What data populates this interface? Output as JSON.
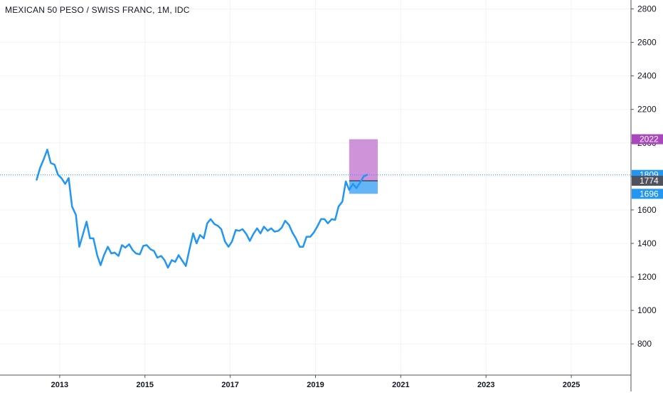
{
  "chart_data": {
    "type": "line",
    "title": "MEXICAN 50 PESO / SWISS FRANC, 1M, IDC",
    "xlabel": "",
    "ylabel": "",
    "x_ticks": [
      "2013",
      "2015",
      "2017",
      "2019",
      "2021",
      "2023",
      "2025"
    ],
    "y_ticks": [
      800,
      1000,
      1200,
      1400,
      1600,
      1800,
      2000,
      2200,
      2400,
      2600,
      2800
    ],
    "xlim": [
      2011.6,
      2026.4
    ],
    "ylim": [
      614,
      2853
    ],
    "grid": true,
    "colors": {
      "line": "#2196f3",
      "profit_zone": "#ce93d8",
      "loss_zone": "#64b5f6",
      "current_price_label": "#2196f3",
      "entry_label": "#50535e",
      "target_label": "#ab47bc",
      "stop_label": "#2196f3",
      "grid": "#f0f3fa",
      "axis_text": "#131722"
    },
    "series": [
      {
        "x": [
          2012.46,
          2012.54,
          2012.63,
          2012.71,
          2012.79,
          2012.88,
          2012.96,
          2013.04,
          2013.13,
          2013.21,
          2013.29,
          2013.38,
          2013.46,
          2013.54,
          2013.63,
          2013.71,
          2013.79,
          2013.88,
          2013.96,
          2014.04,
          2014.13,
          2014.21,
          2014.29,
          2014.38,
          2014.46,
          2014.54,
          2014.63,
          2014.71,
          2014.79,
          2014.88,
          2014.96,
          2015.04,
          2015.13,
          2015.21,
          2015.29,
          2015.38,
          2015.46,
          2015.54,
          2015.63,
          2015.71,
          2015.79,
          2015.88,
          2015.96,
          2016.04,
          2016.13,
          2016.21,
          2016.29,
          2016.38,
          2016.46,
          2016.54,
          2016.63,
          2016.71,
          2016.79,
          2016.88,
          2016.96,
          2017.04,
          2017.13,
          2017.21,
          2017.29,
          2017.38,
          2017.46,
          2017.54,
          2017.63,
          2017.71,
          2017.79,
          2017.88,
          2017.96,
          2018.04,
          2018.13,
          2018.21,
          2018.29,
          2018.38,
          2018.46,
          2018.54,
          2018.63,
          2018.71,
          2018.79,
          2018.88,
          2018.96,
          2019.04,
          2019.13,
          2019.21,
          2019.29,
          2019.38,
          2019.46,
          2019.54,
          2019.63,
          2019.71,
          2019.79,
          2019.88,
          2019.96,
          2020.04,
          2020.13,
          2020.21
        ],
        "values": [
          1780,
          1850,
          1905,
          1960,
          1880,
          1870,
          1810,
          1790,
          1755,
          1790,
          1620,
          1570,
          1380,
          1450,
          1530,
          1430,
          1430,
          1330,
          1270,
          1330,
          1380,
          1340,
          1345,
          1325,
          1390,
          1375,
          1395,
          1360,
          1340,
          1335,
          1385,
          1390,
          1365,
          1355,
          1315,
          1325,
          1300,
          1255,
          1300,
          1290,
          1330,
          1295,
          1265,
          1360,
          1460,
          1400,
          1450,
          1430,
          1520,
          1545,
          1515,
          1505,
          1485,
          1410,
          1380,
          1410,
          1480,
          1475,
          1485,
          1455,
          1415,
          1455,
          1490,
          1460,
          1500,
          1475,
          1490,
          1470,
          1475,
          1495,
          1535,
          1510,
          1465,
          1430,
          1380,
          1380,
          1440,
          1440,
          1465,
          1500,
          1545,
          1545,
          1520,
          1545,
          1540,
          1620,
          1650,
          1770,
          1720,
          1755,
          1730,
          1760,
          1800,
          1809
        ]
      }
    ],
    "position": {
      "x_start": 2019.79,
      "x_end": 2020.46,
      "target": 2022,
      "entry": 1774,
      "stop": 1696
    },
    "price_labels": {
      "current": "1809",
      "entry": "1774",
      "target": "2022",
      "stop": "1696"
    }
  }
}
